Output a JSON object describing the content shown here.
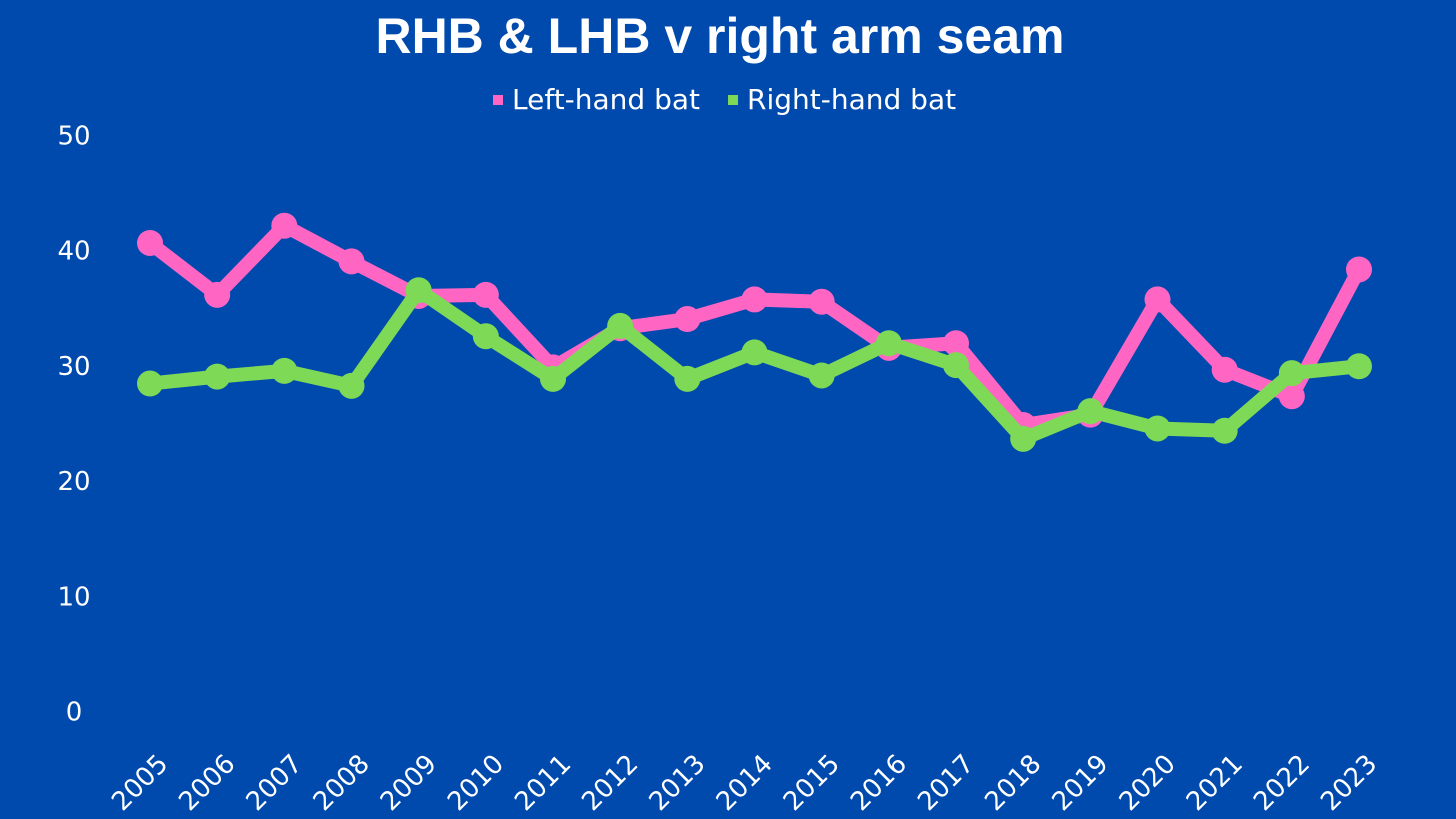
{
  "chart_data": {
    "type": "line",
    "title": "RHB & LHB v right arm seam",
    "categories": [
      "2005",
      "2006",
      "2007",
      "2008",
      "2009",
      "2010",
      "2011",
      "2012",
      "2013",
      "2014",
      "2015",
      "2016",
      "2017",
      "2018",
      "2019",
      "2020",
      "2021",
      "2022",
      "2023"
    ],
    "series": [
      {
        "name": "Left-hand bat",
        "color": "#ff66c4",
        "values": [
          40.8,
          36.3,
          42.3,
          39.2,
          36.2,
          36.3,
          30.0,
          33.4,
          34.2,
          35.9,
          35.7,
          31.7,
          32.1,
          25.0,
          25.9,
          35.9,
          29.8,
          27.5,
          38.5
        ]
      },
      {
        "name": "Right-hand bat",
        "color": "#7ed957",
        "values": [
          28.6,
          29.2,
          29.7,
          28.4,
          36.7,
          32.7,
          29.0,
          33.6,
          29.0,
          31.3,
          29.3,
          32.1,
          30.2,
          23.8,
          26.2,
          24.7,
          24.5,
          29.5,
          30.1
        ]
      }
    ],
    "ylim": [
      0,
      50
    ],
    "yticks": [
      0,
      10,
      20,
      30,
      40,
      50
    ],
    "grid": false,
    "legend": "top"
  }
}
